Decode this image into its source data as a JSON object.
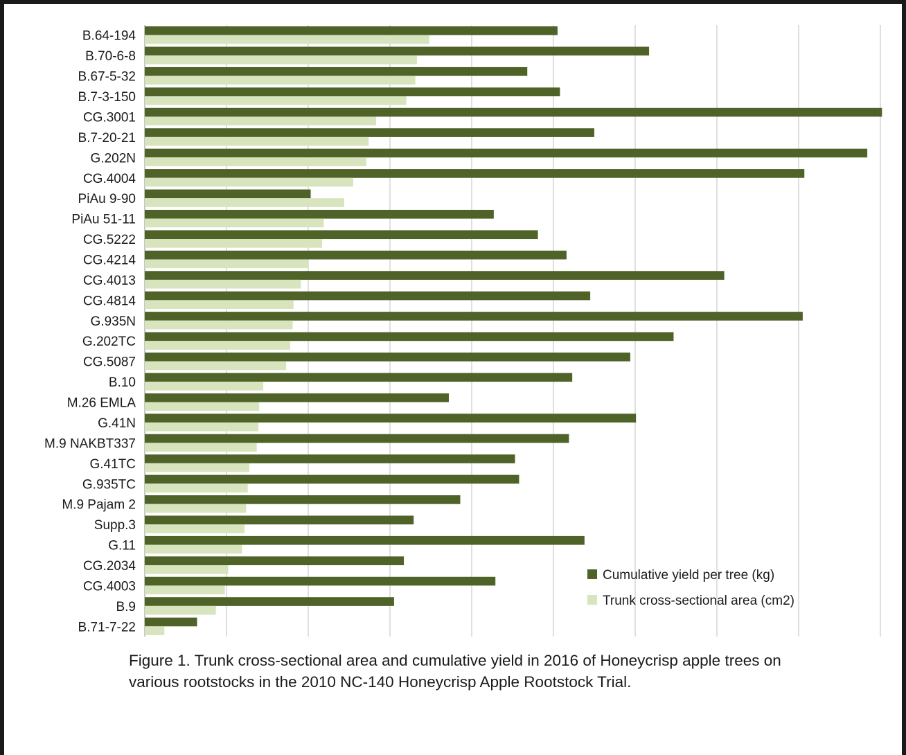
{
  "chart_data": {
    "type": "bar",
    "orientation": "horizontal",
    "categories": [
      "B.64-194",
      "B.70-6-8",
      "B.67-5-32",
      "B.7-3-150",
      "CG.3001",
      "B.7-20-21",
      "G.202N",
      "CG.4004",
      "PiAu 9-90",
      "PiAu 51-11",
      "CG.5222",
      "CG.4214",
      "CG.4013",
      "CG.4814",
      "G.935N",
      "G.202TC",
      "CG.5087",
      "B.10",
      "M.26 EMLA",
      "G.41N",
      "M.9 NAKBT337",
      "G.41TC",
      "G.935TC",
      "M.9 Pajam 2",
      "Supp.3",
      "G.11",
      "CG.2034",
      "CG.4003",
      "B.9",
      "B.71-7-22"
    ],
    "series": [
      {
        "name": "Cumulative yield per tree (kg)",
        "color": "#4f6228",
        "values": [
          50.5,
          61.7,
          46.8,
          50.8,
          90.2,
          55.0,
          88.4,
          80.7,
          20.3,
          42.7,
          48.1,
          51.6,
          70.9,
          54.5,
          80.5,
          64.7,
          59.4,
          52.3,
          37.2,
          60.1,
          51.9,
          45.3,
          45.8,
          38.6,
          32.9,
          53.8,
          31.7,
          42.9,
          30.5,
          6.4
        ]
      },
      {
        "name": "Trunk cross-sectional area (cm2)",
        "color": "#d7e4bd",
        "values": [
          34.8,
          33.3,
          33.1,
          32.0,
          28.3,
          27.4,
          27.1,
          25.5,
          24.4,
          21.9,
          21.7,
          20.0,
          19.1,
          18.2,
          18.1,
          17.8,
          17.3,
          14.5,
          14.0,
          13.9,
          13.7,
          12.8,
          12.6,
          12.4,
          12.2,
          11.9,
          10.2,
          9.8,
          8.7,
          2.4
        ]
      }
    ],
    "xlim": [
      0,
      90
    ],
    "xticks": [
      "0.0",
      "10.0",
      "20.0",
      "30.0",
      "40.0",
      "50.0",
      "60.0",
      "70.0",
      "80.0",
      "90.0"
    ],
    "grid": true,
    "legend_position": "bottom-right",
    "title": "",
    "xlabel": "",
    "ylabel": ""
  },
  "caption": "Figure 1.  Trunk cross-sectional area and cumulative yield in 2016 of Honeycrisp apple trees on various rootstocks  in the 2010 NC-140 Honeycrisp Apple Rootstock Trial."
}
